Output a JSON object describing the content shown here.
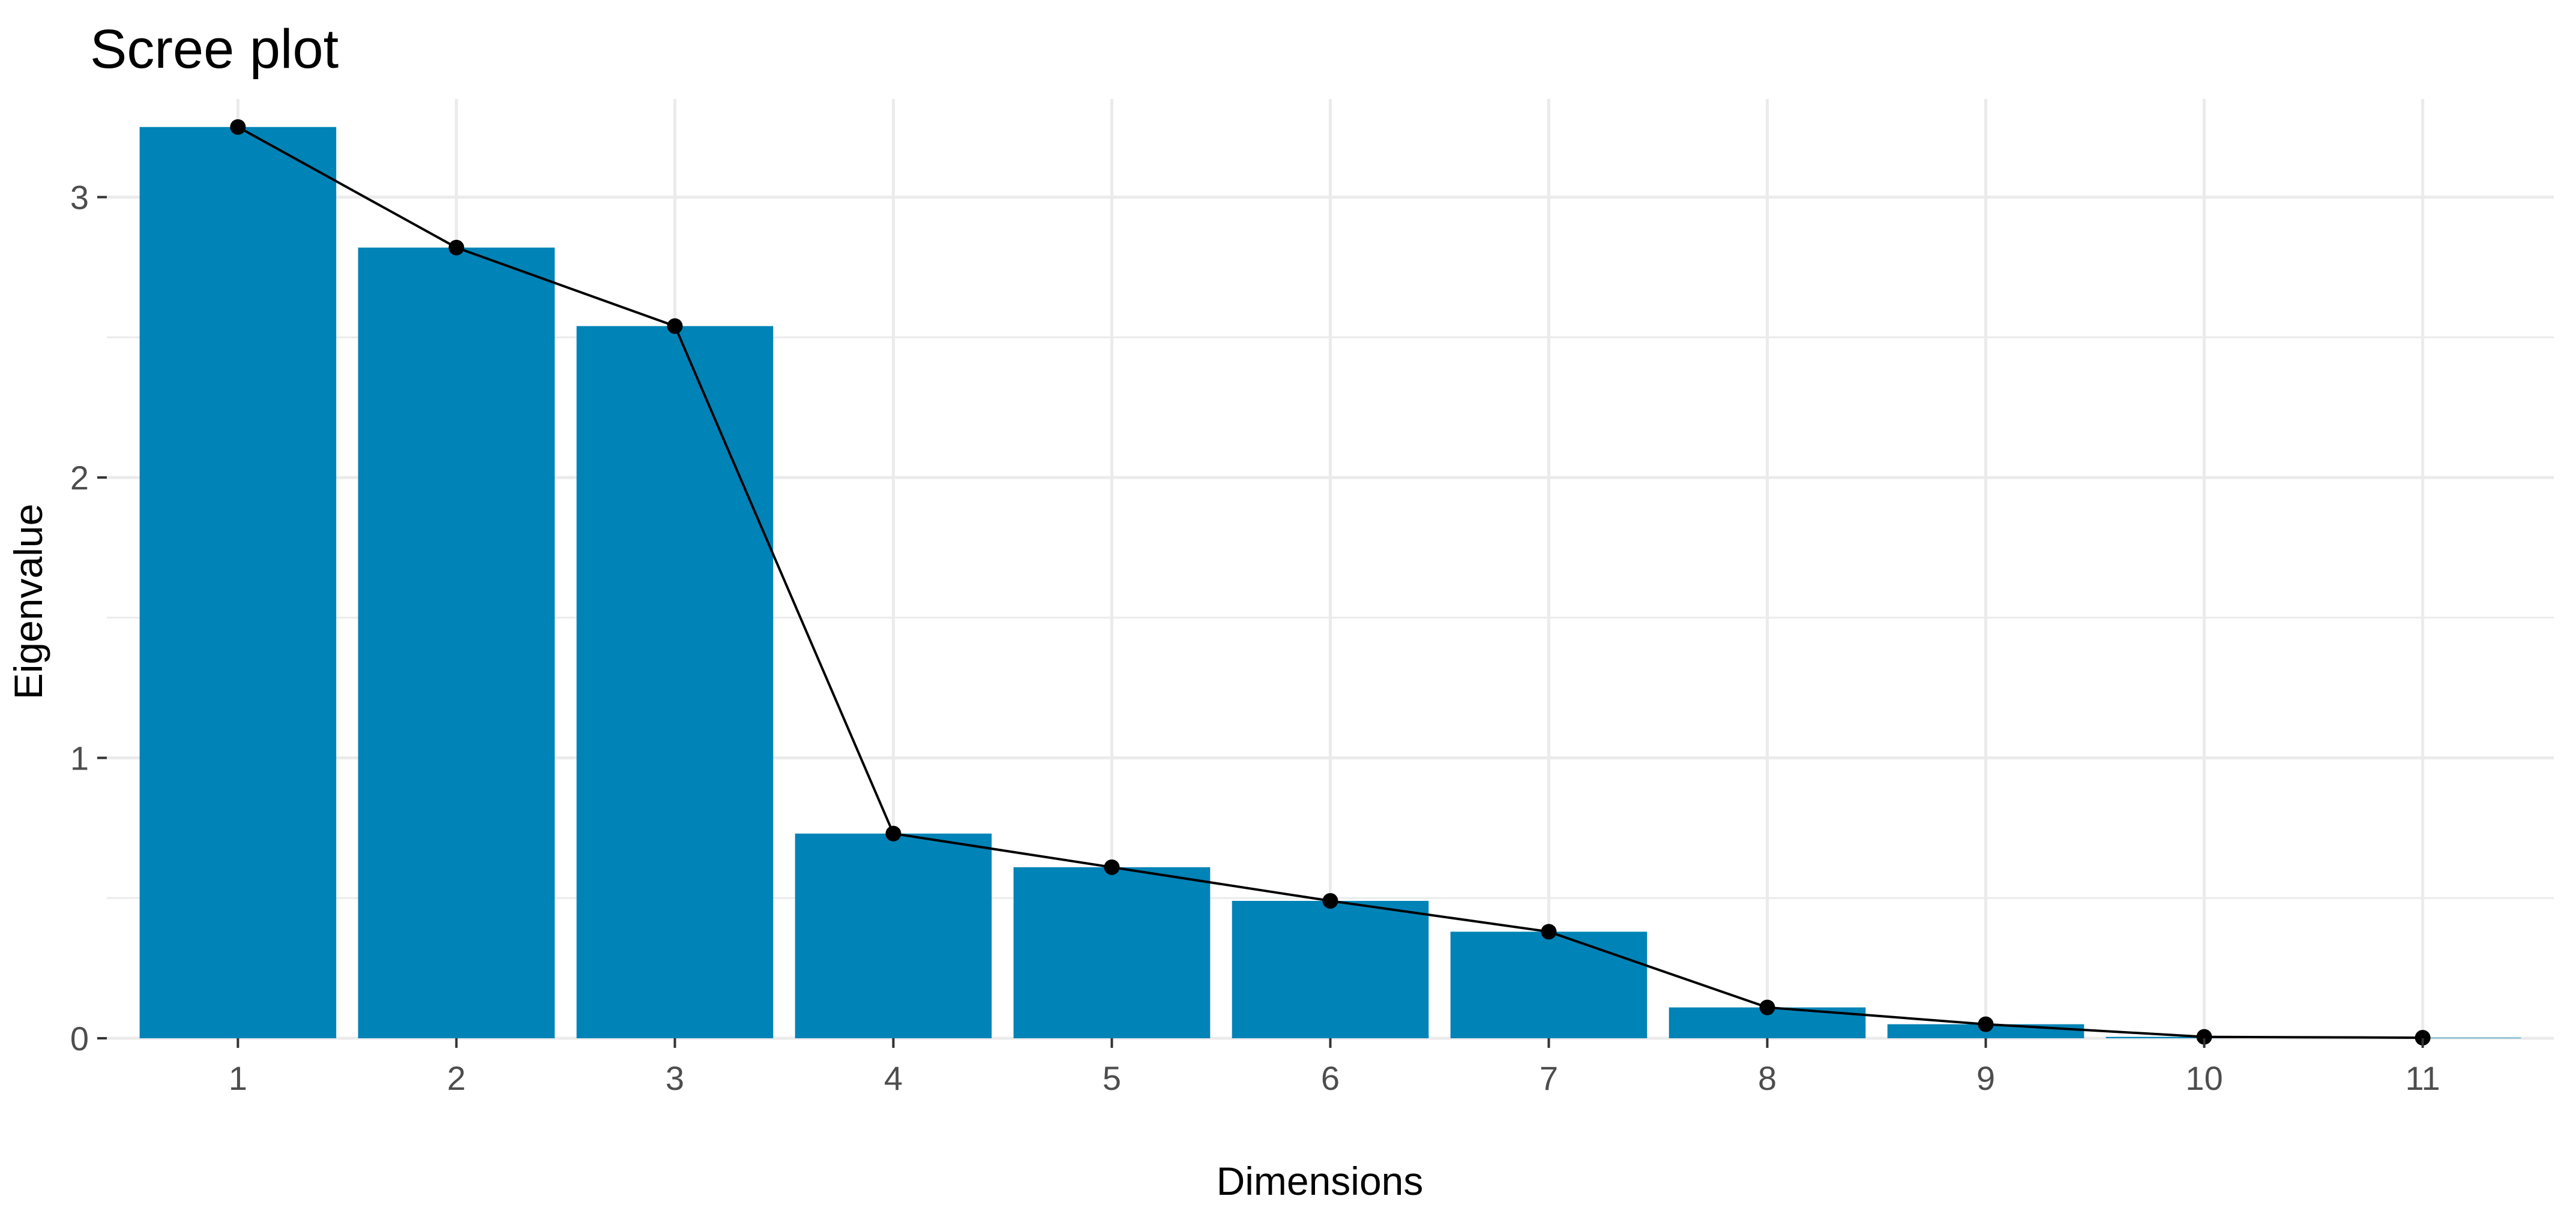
{
  "chart_data": {
    "type": "bar",
    "title": "Scree plot",
    "xlabel": "Dimensions",
    "ylabel": "Eigenvalue",
    "categories": [
      "1",
      "2",
      "3",
      "4",
      "5",
      "6",
      "7",
      "8",
      "9",
      "10",
      "11"
    ],
    "values": [
      3.25,
      2.82,
      2.54,
      0.73,
      0.61,
      0.49,
      0.38,
      0.11,
      0.05,
      0.005,
      0.002
    ],
    "overlay": "line-with-points",
    "ylim": [
      0,
      3.35
    ],
    "yticks": [
      "0",
      "1",
      "2",
      "3"
    ],
    "grid": true,
    "legend": "none",
    "colors": {
      "bar": "#0083b7",
      "line": "#000000",
      "grid": "#ebebeb",
      "text": "#4d4d4d"
    }
  }
}
